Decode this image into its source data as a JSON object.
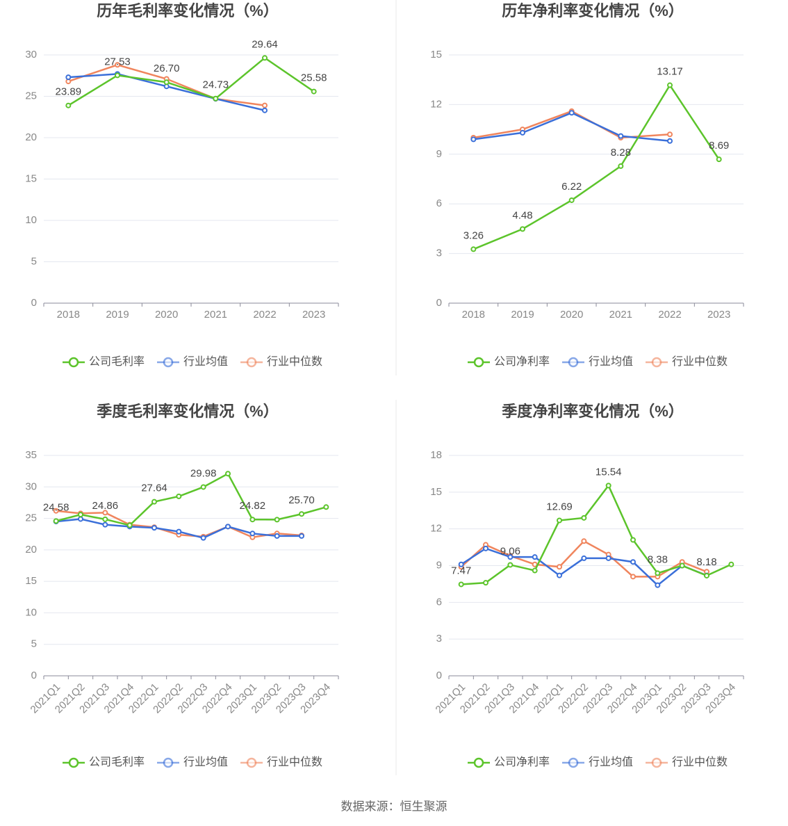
{
  "chart_data": [
    {
      "type": "line",
      "title": "历年毛利率变化情况（%）",
      "categories": [
        "2018",
        "2019",
        "2020",
        "2021",
        "2022",
        "2023"
      ],
      "series": [
        {
          "name": "公司毛利率",
          "color": "#5cc42b",
          "values": [
            23.89,
            27.53,
            26.7,
            24.73,
            29.64,
            25.58
          ],
          "value_labels": [
            "23.89",
            "27.53",
            "26.70",
            "24.73",
            "29.64",
            "25.58"
          ]
        },
        {
          "name": "行业均值",
          "color": "#3a6fd9",
          "values": [
            27.3,
            27.7,
            26.2,
            24.7,
            23.3,
            null
          ]
        },
        {
          "name": "行业中位数",
          "color": "#f0855d",
          "values": [
            26.8,
            28.8,
            27.1,
            24.7,
            23.9,
            null
          ]
        }
      ],
      "ylim": [
        0,
        30
      ],
      "yticks": [
        0,
        5,
        10,
        15,
        20,
        25,
        30
      ],
      "grid": true
    },
    {
      "type": "line",
      "title": "历年净利率变化情况（%）",
      "categories": [
        "2018",
        "2019",
        "2020",
        "2021",
        "2022",
        "2023"
      ],
      "series": [
        {
          "name": "公司净利率",
          "color": "#5cc42b",
          "values": [
            3.26,
            4.48,
            6.22,
            8.28,
            13.17,
            8.69
          ],
          "value_labels": [
            "3.26",
            "4.48",
            "6.22",
            "8.28",
            "13.17",
            "8.69"
          ]
        },
        {
          "name": "行业均值",
          "color": "#3a6fd9",
          "values": [
            9.9,
            10.3,
            11.5,
            10.1,
            9.8,
            null
          ]
        },
        {
          "name": "行业中位数",
          "color": "#f0855d",
          "values": [
            10.0,
            10.5,
            11.6,
            10.0,
            10.2,
            null
          ]
        }
      ],
      "ylim": [
        0,
        15
      ],
      "yticks": [
        0,
        3,
        6,
        9,
        12,
        15
      ],
      "grid": true
    },
    {
      "type": "line",
      "title": "季度毛利率变化情况（%）",
      "categories": [
        "2021Q1",
        "2021Q2",
        "2021Q3",
        "2021Q4",
        "2022Q1",
        "2022Q2",
        "2022Q3",
        "2022Q4",
        "2023Q1",
        "2023Q2",
        "2023Q3",
        "2023Q4"
      ],
      "series": [
        {
          "name": "公司毛利率",
          "color": "#5cc42b",
          "values": [
            24.58,
            25.6,
            24.86,
            23.9,
            27.64,
            28.5,
            29.98,
            32.1,
            24.82,
            24.8,
            25.7,
            26.8
          ],
          "value_labels": [
            "24.58",
            null,
            "24.86",
            null,
            "27.64",
            null,
            "29.98",
            null,
            "24.82",
            null,
            "25.70",
            null
          ]
        },
        {
          "name": "行业均值",
          "color": "#3a6fd9",
          "values": [
            24.5,
            24.9,
            24.0,
            23.7,
            23.5,
            22.9,
            21.9,
            23.7,
            22.6,
            22.2,
            22.2,
            null
          ]
        },
        {
          "name": "行业中位数",
          "color": "#f0855d",
          "values": [
            26.2,
            25.8,
            25.9,
            24.0,
            23.6,
            22.4,
            22.1,
            23.7,
            22.0,
            22.6,
            22.3,
            null
          ]
        }
      ],
      "ylim": [
        0,
        35
      ],
      "yticks": [
        0,
        5,
        10,
        15,
        20,
        25,
        30,
        35
      ],
      "grid": true
    },
    {
      "type": "line",
      "title": "季度净利率变化情况（%）",
      "categories": [
        "2021Q1",
        "2021Q2",
        "2021Q3",
        "2021Q4",
        "2022Q1",
        "2022Q2",
        "2022Q3",
        "2022Q4",
        "2023Q1",
        "2023Q2",
        "2023Q3",
        "2023Q4"
      ],
      "series": [
        {
          "name": "公司净利率",
          "color": "#5cc42b",
          "values": [
            7.47,
            7.6,
            9.06,
            8.6,
            12.69,
            12.9,
            15.54,
            11.1,
            8.38,
            9.0,
            8.18,
            9.1
          ],
          "value_labels": [
            "7.47",
            null,
            "9.06",
            null,
            "12.69",
            null,
            "15.54",
            null,
            "8.38",
            null,
            "8.18",
            null
          ]
        },
        {
          "name": "行业均值",
          "color": "#3a6fd9",
          "values": [
            9.1,
            10.4,
            9.7,
            9.7,
            8.2,
            9.6,
            9.6,
            9.3,
            7.4,
            9.0,
            8.2,
            null
          ]
        },
        {
          "name": "行业中位数",
          "color": "#f0855d",
          "values": [
            8.9,
            10.7,
            9.8,
            9.1,
            8.9,
            11.0,
            9.9,
            8.1,
            8.1,
            9.3,
            8.5,
            null
          ]
        }
      ],
      "ylim": [
        0,
        18
      ],
      "yticks": [
        0,
        3,
        6,
        9,
        12,
        15,
        18
      ],
      "grid": true
    }
  ],
  "source": "数据来源：恒生聚源"
}
